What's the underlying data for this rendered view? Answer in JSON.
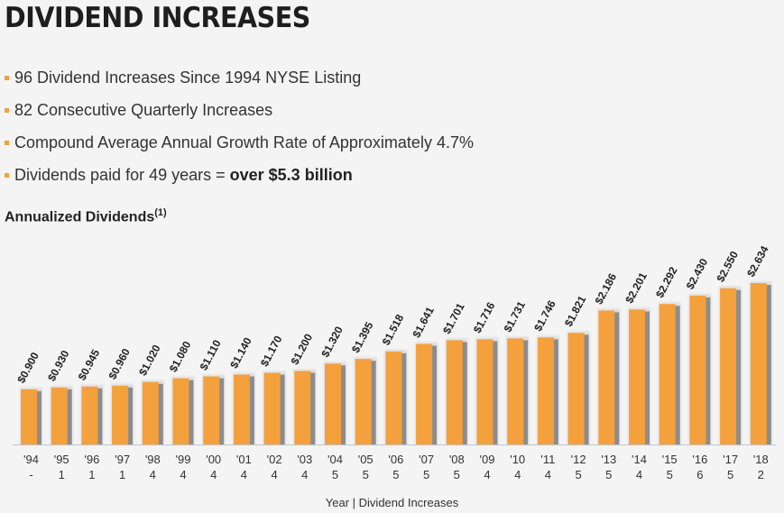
{
  "header": {
    "title": "DIVIDEND INCREASES"
  },
  "bullets": [
    {
      "text": "96 Dividend Increases Since 1994 NYSE Listing",
      "bold": ""
    },
    {
      "text": "82 Consecutive Quarterly Increases",
      "bold": ""
    },
    {
      "text": "Compound Average Annual Growth Rate of Approximately 4.7%",
      "bold": ""
    },
    {
      "text": "Dividends paid for 49 years = ",
      "bold": "over $5.3 billion"
    }
  ],
  "colors": {
    "bar": "#f4a03c",
    "bar_shadow": "#8c8c8c",
    "bullet": "#f4a03c",
    "axis": "#b9c7dc",
    "background": "#f4f4f4"
  },
  "chart_data": {
    "type": "bar",
    "title": "Annualized Dividends",
    "title_footnote": "(1)",
    "xlabel": "Year | Dividend Increases",
    "ylabel": "",
    "ylim": [
      0,
      2.634
    ],
    "grid": false,
    "legend": "none",
    "categories": [
      "'94",
      "'95",
      "'96",
      "'97",
      "'98",
      "'99",
      "'00",
      "'01",
      "'02",
      "'03",
      "'04",
      "'05",
      "'06",
      "'07",
      "'08",
      "'09",
      "'10",
      "'11",
      "'12",
      "'13",
      "'14",
      "'15",
      "'16",
      "'17",
      "'18"
    ],
    "increases": [
      "-",
      "1",
      "1",
      "1",
      "4",
      "4",
      "4",
      "4",
      "4",
      "4",
      "5",
      "5",
      "5",
      "5",
      "5",
      "4",
      "4",
      "4",
      "5",
      "5",
      "4",
      "5",
      "6",
      "5",
      "2"
    ],
    "values": [
      0.9,
      0.93,
      0.945,
      0.96,
      1.02,
      1.08,
      1.11,
      1.14,
      1.17,
      1.2,
      1.32,
      1.395,
      1.518,
      1.641,
      1.701,
      1.716,
      1.731,
      1.746,
      1.821,
      2.186,
      2.201,
      2.292,
      2.43,
      2.55,
      2.634
    ],
    "value_labels": [
      "$0.900",
      "$0.930",
      "$0.945",
      "$0.960",
      "$1.020",
      "$1.080",
      "$1.110",
      "$1.140",
      "$1.170",
      "$1.200",
      "$1.320",
      "$1.395",
      "$1.518",
      "$1.641",
      "$1.701",
      "$1.716",
      "$1.731",
      "$1.746",
      "$1.821",
      "$2.186",
      "$2.201",
      "$2.292",
      "$2.430",
      "$2.550",
      "$2.634"
    ]
  }
}
